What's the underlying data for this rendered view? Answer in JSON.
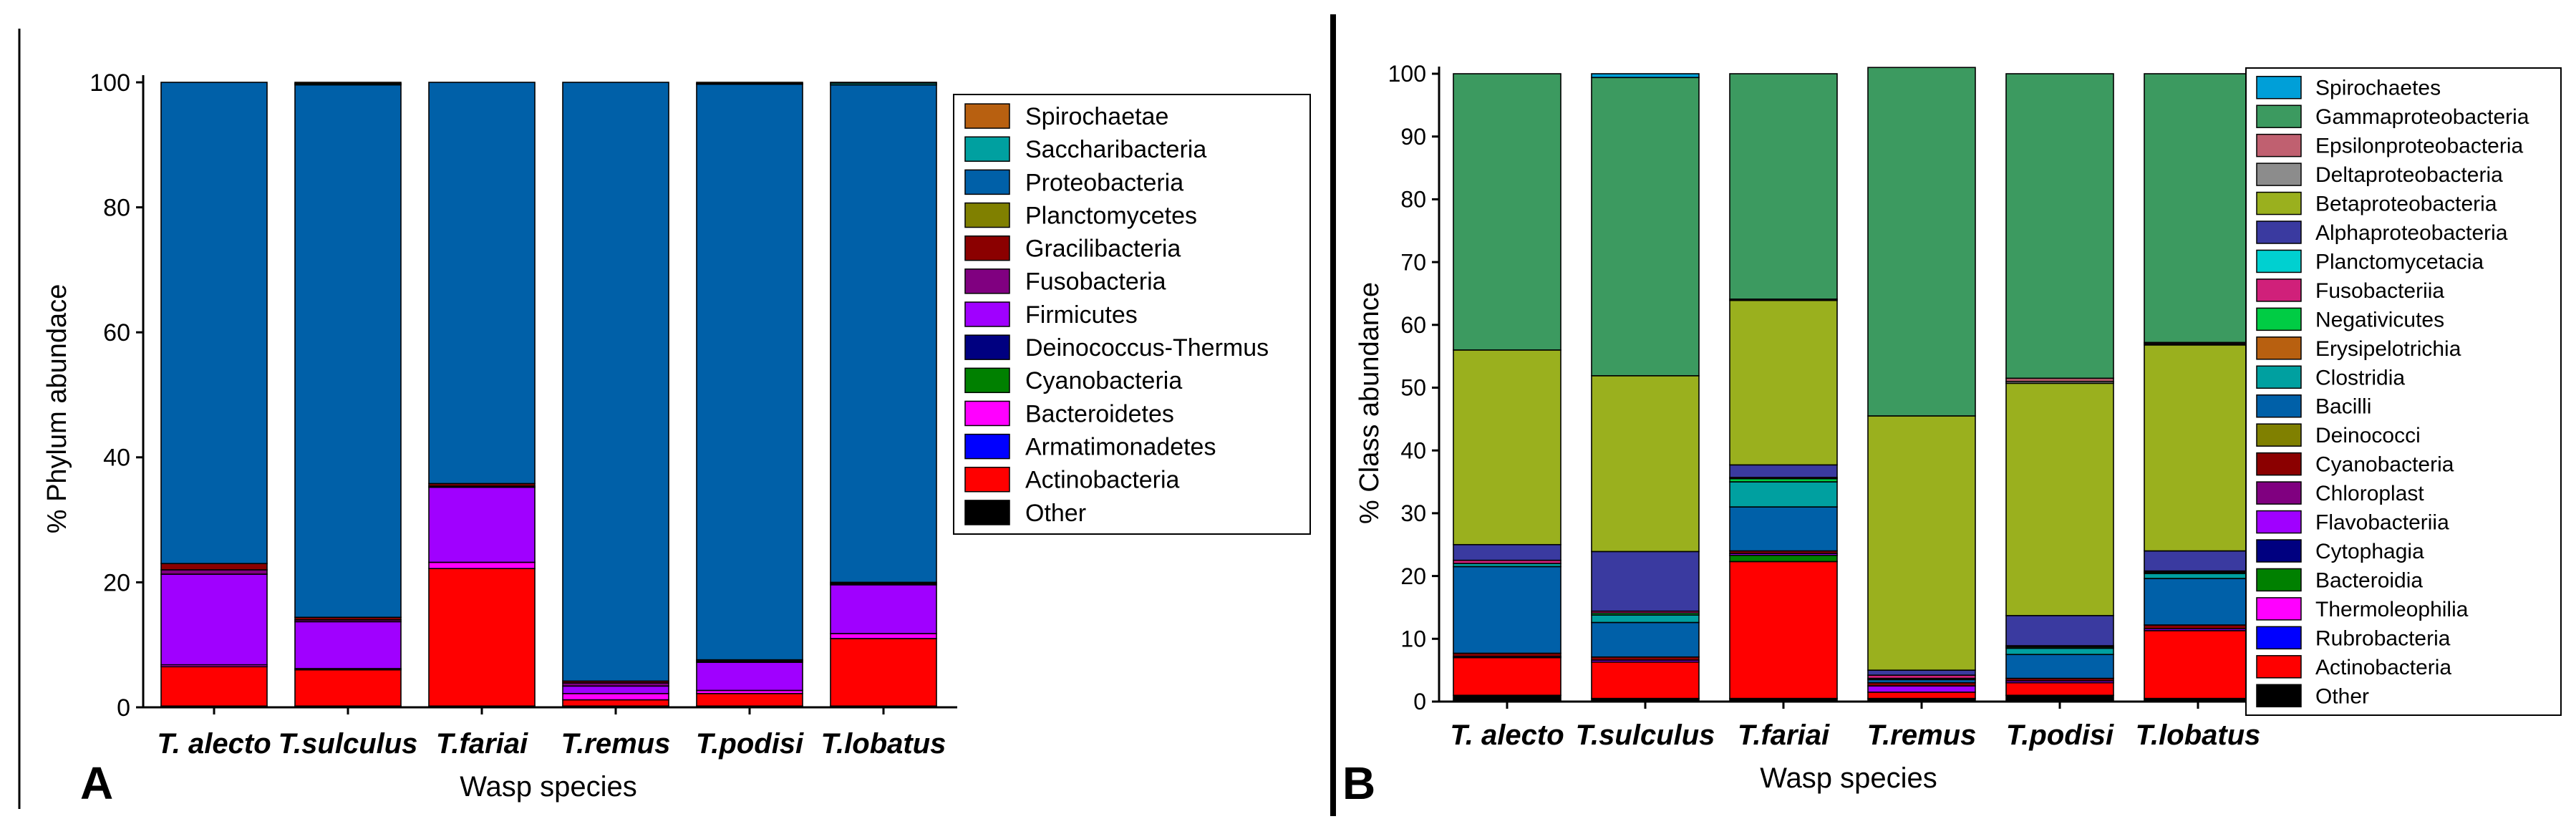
{
  "chart_data": [
    {
      "type": "bar",
      "stacked": true,
      "panel_label": "A",
      "xlabel": "Wasp species",
      "ylabel": "% Phylum abundace",
      "ylim": [
        0,
        100
      ],
      "yticks": [
        0,
        20,
        40,
        60,
        80,
        100
      ],
      "categories": [
        "T. alecto",
        "T.sulculus",
        "T.fariai",
        "T.remus",
        "T.podisi",
        "T.lobatus"
      ],
      "legend_position": "right",
      "series": [
        {
          "name": "Other",
          "color": "#000000",
          "values": [
            0.2,
            0.2,
            0.2,
            0.2,
            0.2,
            0.2
          ]
        },
        {
          "name": "Actinobacteria",
          "color": "#ff0000",
          "values": [
            6.3,
            5.8,
            22.0,
            1.0,
            2.0,
            10.8
          ]
        },
        {
          "name": "Armatimonadetes",
          "color": "#0000ff",
          "values": [
            0.0,
            0.0,
            0.0,
            0.0,
            0.0,
            0.0
          ]
        },
        {
          "name": "Bacteroidetes",
          "color": "#ff00ff",
          "values": [
            0.3,
            0.2,
            1.0,
            1.0,
            0.5,
            0.8
          ]
        },
        {
          "name": "Cyanobacteria",
          "color": "#008000",
          "values": [
            0.0,
            0.0,
            0.0,
            0.0,
            0.0,
            0.0
          ]
        },
        {
          "name": "Deinococcus-Thermus",
          "color": "#000080",
          "values": [
            0.0,
            0.0,
            0.0,
            0.0,
            0.0,
            0.0
          ]
        },
        {
          "name": "Firmicutes",
          "color": "#a000ff",
          "values": [
            14.5,
            7.5,
            12.0,
            1.2,
            4.5,
            7.8
          ]
        },
        {
          "name": "Fusobacteria",
          "color": "#800080",
          "values": [
            0.7,
            0.3,
            0.2,
            0.5,
            0.2,
            0.2
          ]
        },
        {
          "name": "Gracilibacteria",
          "color": "#8b0000",
          "values": [
            1.0,
            0.4,
            0.4,
            0.3,
            0.2,
            0.2
          ]
        },
        {
          "name": "Planctomycetes",
          "color": "#808000",
          "values": [
            0.0,
            0.0,
            0.0,
            0.0,
            0.0,
            0.0
          ]
        },
        {
          "name": "Proteobacteria",
          "color": "#0060a8",
          "values": [
            77.0,
            85.2,
            64.2,
            95.8,
            92.1,
            79.6
          ]
        },
        {
          "name": "Saccharibacteria",
          "color": "#00a0a0",
          "values": [
            0.0,
            0.2,
            0.0,
            0.0,
            0.1,
            0.3
          ]
        },
        {
          "name": "Spirochaetae",
          "color": "#b86010",
          "values": [
            0.0,
            0.2,
            0.0,
            0.0,
            0.2,
            0.1
          ]
        }
      ]
    },
    {
      "type": "bar",
      "stacked": true,
      "panel_label": "B",
      "xlabel": "Wasp species",
      "ylabel": "% Class abundance",
      "ylim": [
        0,
        100
      ],
      "yticks": [
        0,
        10,
        20,
        30,
        40,
        50,
        60,
        70,
        80,
        90,
        100
      ],
      "categories": [
        "T. alecto",
        "T.sulculus",
        "T.fariai",
        "T.remus",
        "T.podisi",
        "T.lobatus"
      ],
      "legend_position": "right",
      "series": [
        {
          "name": "Other",
          "color": "#000000",
          "values": [
            1.0,
            0.5,
            0.5,
            0.5,
            1.0,
            0.5
          ]
        },
        {
          "name": "Actinobacteria",
          "color": "#ff0000",
          "values": [
            6.0,
            5.8,
            21.8,
            1.0,
            2.0,
            10.8
          ]
        },
        {
          "name": "Rubrobacteria",
          "color": "#0000ff",
          "values": [
            0.0,
            0.0,
            0.0,
            0.0,
            0.0,
            0.0
          ]
        },
        {
          "name": "Thermoleophilia",
          "color": "#ff00ff",
          "values": [
            0.0,
            0.0,
            0.0,
            0.0,
            0.0,
            0.0
          ]
        },
        {
          "name": "Bacteroidia",
          "color": "#008000",
          "values": [
            0.0,
            0.0,
            1.0,
            0.0,
            0.0,
            0.0
          ]
        },
        {
          "name": "Cytophagia",
          "color": "#000080",
          "values": [
            0.0,
            0.0,
            0.0,
            0.0,
            0.0,
            0.0
          ]
        },
        {
          "name": "Flavobacteriia",
          "color": "#a000ff",
          "values": [
            0.2,
            0.3,
            0.3,
            1.0,
            0.3,
            0.3
          ]
        },
        {
          "name": "Chloroplast",
          "color": "#800080",
          "values": [
            0.0,
            0.0,
            0.0,
            0.0,
            0.0,
            0.0
          ]
        },
        {
          "name": "Cyanobacteria",
          "color": "#8b0000",
          "values": [
            0.5,
            0.5,
            0.4,
            0.5,
            0.4,
            0.6
          ]
        },
        {
          "name": "Deinococci",
          "color": "#808000",
          "values": [
            0.0,
            0.0,
            0.0,
            0.0,
            0.0,
            0.0
          ]
        },
        {
          "name": "Bacilli",
          "color": "#0060a8",
          "values": [
            13.8,
            5.5,
            7.0,
            0.5,
            3.8,
            7.4
          ]
        },
        {
          "name": "Clostridia",
          "color": "#00a0a0",
          "values": [
            0.5,
            1.2,
            4.0,
            0.2,
            1.0,
            0.8
          ]
        },
        {
          "name": "Erysipelotrichia",
          "color": "#b86010",
          "values": [
            0.0,
            0.0,
            0.0,
            0.0,
            0.0,
            0.0
          ]
        },
        {
          "name": "Negativicutes",
          "color": "#00cc44",
          "values": [
            0.0,
            0.3,
            0.5,
            0.0,
            0.2,
            0.2
          ]
        },
        {
          "name": "Fusobacteriia",
          "color": "#d0207a",
          "values": [
            0.5,
            0.3,
            0.2,
            0.5,
            0.2,
            0.2
          ]
        },
        {
          "name": "Planctomycetacia",
          "color": "#00d0d0",
          "values": [
            0.0,
            0.0,
            0.0,
            0.0,
            0.0,
            0.0
          ]
        },
        {
          "name": "Alphaproteobacteria",
          "color": "#3a3aa0",
          "values": [
            2.5,
            9.5,
            2.0,
            0.8,
            4.8,
            3.2
          ]
        },
        {
          "name": "Betaproteobacteria",
          "color": "#9ab01e",
          "values": [
            31.0,
            28.0,
            26.2,
            40.5,
            37.0,
            32.8
          ]
        },
        {
          "name": "Deltaproteobacteria",
          "color": "#8c8c8c",
          "values": [
            0.0,
            0.0,
            0.2,
            0.0,
            0.3,
            0.2
          ]
        },
        {
          "name": "Epsilonproteobacteria",
          "color": "#c06070",
          "values": [
            0.0,
            0.0,
            0.0,
            0.0,
            0.5,
            0.2
          ]
        },
        {
          "name": "Gammaproteobacteria",
          "color": "#3c9a60",
          "values": [
            44.0,
            47.5,
            35.9,
            55.5,
            48.5,
            42.8
          ]
        },
        {
          "name": "Spirochaetes",
          "color": "#009fd8",
          "values": [
            0.0,
            0.6,
            0.0,
            0.0,
            0.0,
            0.0
          ]
        }
      ]
    }
  ]
}
